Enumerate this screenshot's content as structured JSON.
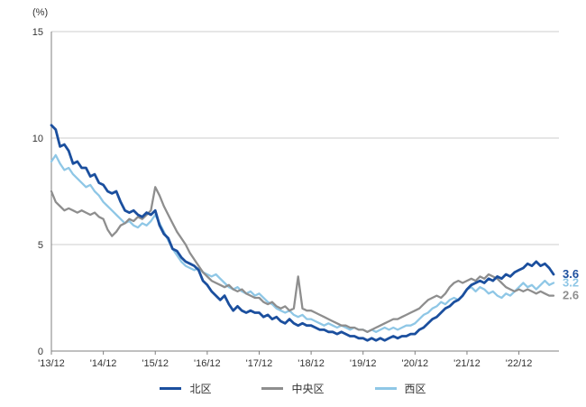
{
  "chart_data": {
    "type": "line",
    "title": "",
    "unit_label": "(%)",
    "ylim": [
      0,
      15
    ],
    "y_ticks": [
      0,
      5,
      10,
      15
    ],
    "grid": "horizontal-only",
    "legend_position": "bottom-center",
    "x_tick_labels": [
      "'13/12",
      "'14/12",
      "'15/12",
      "'16/12",
      "'17/12",
      "'18/12",
      "'19/12",
      "'20/12",
      "'21/12",
      "'22/12"
    ],
    "x_tick_month_indices": [
      0,
      12,
      24,
      36,
      48,
      60,
      72,
      84,
      96,
      108
    ],
    "series": [
      {
        "key": "kita",
        "name": "北区",
        "color": "#1b4f9e",
        "end_label": "3.6",
        "values": [
          10.6,
          10.4,
          9.6,
          9.7,
          9.4,
          8.8,
          8.9,
          8.6,
          8.6,
          8.2,
          8.3,
          7.9,
          7.8,
          7.5,
          7.4,
          7.5,
          7.0,
          6.6,
          6.5,
          6.6,
          6.4,
          6.3,
          6.5,
          6.4,
          6.6,
          5.9,
          5.5,
          5.3,
          4.8,
          4.7,
          4.4,
          4.2,
          4.1,
          4.0,
          3.8,
          3.3,
          3.1,
          2.8,
          2.6,
          2.4,
          2.6,
          2.2,
          1.9,
          2.1,
          1.9,
          1.8,
          1.9,
          1.8,
          1.8,
          1.6,
          1.7,
          1.5,
          1.6,
          1.4,
          1.3,
          1.5,
          1.3,
          1.2,
          1.3,
          1.2,
          1.2,
          1.1,
          1.0,
          1.0,
          0.9,
          0.9,
          0.8,
          0.9,
          0.8,
          0.7,
          0.7,
          0.6,
          0.6,
          0.5,
          0.6,
          0.5,
          0.6,
          0.5,
          0.6,
          0.7,
          0.6,
          0.7,
          0.7,
          0.8,
          0.8,
          1.0,
          1.1,
          1.3,
          1.5,
          1.6,
          1.8,
          2.0,
          2.1,
          2.3,
          2.4,
          2.6,
          2.9,
          3.1,
          3.2,
          3.3,
          3.2,
          3.4,
          3.3,
          3.5,
          3.4,
          3.6,
          3.5,
          3.7,
          3.8,
          3.9,
          4.1,
          4.0,
          4.2,
          4.0,
          4.1,
          3.9,
          3.6
        ]
      },
      {
        "key": "chuo",
        "name": "中央区",
        "color": "#8e8e8e",
        "end_label": "2.6",
        "values": [
          7.5,
          7.0,
          6.8,
          6.6,
          6.7,
          6.6,
          6.5,
          6.6,
          6.5,
          6.4,
          6.5,
          6.3,
          6.2,
          5.7,
          5.4,
          5.6,
          5.9,
          6.0,
          6.2,
          6.1,
          6.3,
          6.2,
          6.4,
          6.6,
          7.7,
          7.3,
          6.8,
          6.4,
          6.0,
          5.6,
          5.3,
          5.0,
          4.6,
          4.3,
          4.0,
          3.7,
          3.5,
          3.3,
          3.2,
          3.1,
          3.0,
          3.1,
          2.9,
          2.8,
          2.9,
          2.7,
          2.6,
          2.5,
          2.5,
          2.3,
          2.2,
          2.3,
          2.1,
          2.0,
          2.1,
          1.9,
          2.0,
          3.5,
          2.0,
          1.9,
          1.9,
          1.8,
          1.7,
          1.6,
          1.5,
          1.4,
          1.3,
          1.2,
          1.2,
          1.1,
          1.1,
          1.0,
          1.0,
          0.9,
          1.0,
          1.1,
          1.2,
          1.3,
          1.4,
          1.5,
          1.5,
          1.6,
          1.7,
          1.8,
          1.9,
          2.0,
          2.2,
          2.4,
          2.5,
          2.6,
          2.5,
          2.7,
          3.0,
          3.2,
          3.3,
          3.2,
          3.3,
          3.4,
          3.3,
          3.5,
          3.4,
          3.6,
          3.5,
          3.4,
          3.2,
          3.0,
          2.9,
          2.8,
          2.9,
          2.8,
          2.9,
          2.8,
          2.7,
          2.8,
          2.7,
          2.6,
          2.6
        ]
      },
      {
        "key": "nishi",
        "name": "西区",
        "color": "#8fc7e6",
        "end_label": "3.2",
        "values": [
          8.9,
          9.2,
          8.8,
          8.5,
          8.6,
          8.3,
          8.1,
          7.9,
          7.7,
          7.8,
          7.5,
          7.3,
          7.0,
          6.8,
          6.6,
          6.4,
          6.2,
          6.0,
          6.1,
          5.9,
          5.8,
          6.0,
          5.9,
          6.1,
          6.4,
          6.0,
          5.6,
          5.2,
          4.8,
          4.5,
          4.2,
          4.0,
          3.9,
          3.8,
          3.9,
          3.7,
          3.6,
          3.5,
          3.6,
          3.4,
          3.2,
          3.0,
          2.9,
          3.0,
          2.8,
          2.7,
          2.8,
          2.6,
          2.7,
          2.5,
          2.3,
          2.2,
          2.0,
          1.9,
          1.8,
          1.9,
          1.7,
          1.6,
          1.7,
          1.5,
          1.5,
          1.4,
          1.3,
          1.2,
          1.3,
          1.2,
          1.1,
          1.2,
          1.1,
          1.0,
          1.1,
          1.0,
          1.0,
          0.9,
          1.0,
          0.9,
          1.0,
          1.1,
          1.0,
          1.1,
          1.0,
          1.1,
          1.2,
          1.2,
          1.3,
          1.5,
          1.7,
          1.8,
          2.0,
          2.1,
          2.3,
          2.2,
          2.4,
          2.5,
          2.4,
          2.6,
          2.9,
          3.0,
          2.8,
          3.0,
          2.9,
          2.7,
          2.8,
          2.6,
          2.5,
          2.7,
          2.6,
          2.8,
          3.0,
          3.2,
          3.0,
          3.1,
          2.9,
          3.1,
          3.3,
          3.1,
          3.2
        ]
      }
    ]
  }
}
